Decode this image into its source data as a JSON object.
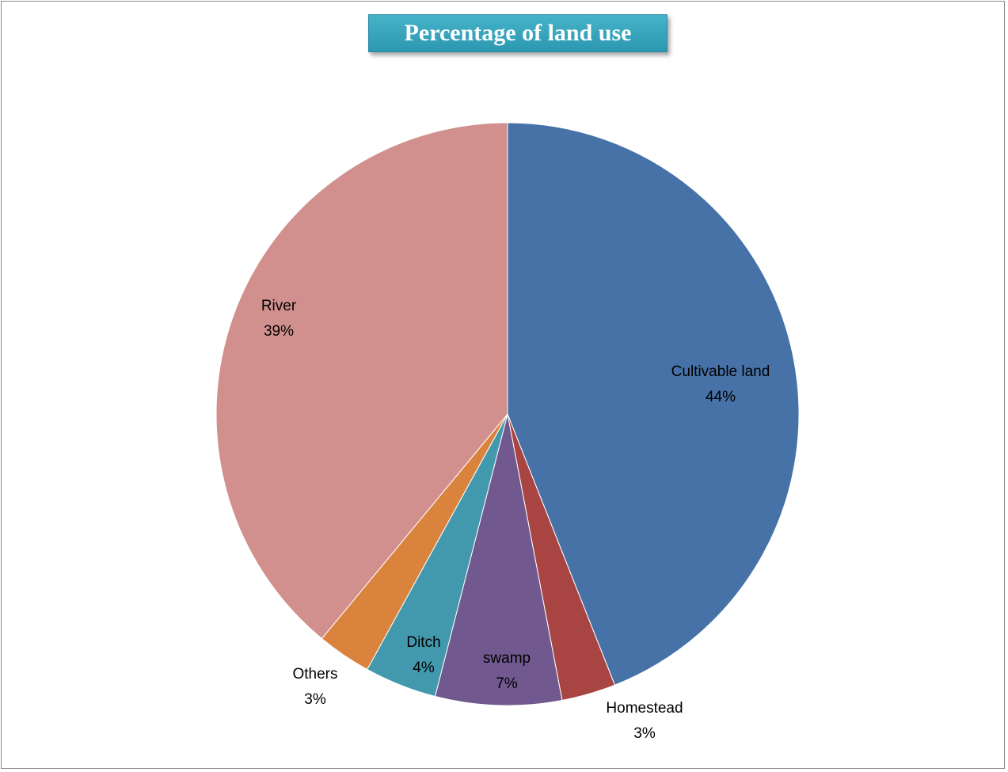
{
  "chart_data": {
    "type": "pie",
    "title": "Percentage of land use",
    "slices": [
      {
        "label": "Cultivable land",
        "value": 44,
        "value_label": "44%",
        "color": "#4672a8"
      },
      {
        "label": "Homestead",
        "value": 3,
        "value_label": "3%",
        "color": "#a84442"
      },
      {
        "label": "swamp",
        "value": 7,
        "value_label": "7%",
        "color": "#71598f"
      },
      {
        "label": "Ditch",
        "value": 4,
        "value_label": "4%",
        "color": "#4298ad"
      },
      {
        "label": "Others",
        "value": 3,
        "value_label": "3%",
        "color": "#d9833c"
      },
      {
        "label": "River",
        "value": 39,
        "value_label": "39%",
        "color": "#d1908e"
      }
    ],
    "start_angle_deg": 0,
    "direction": "clockwise"
  }
}
